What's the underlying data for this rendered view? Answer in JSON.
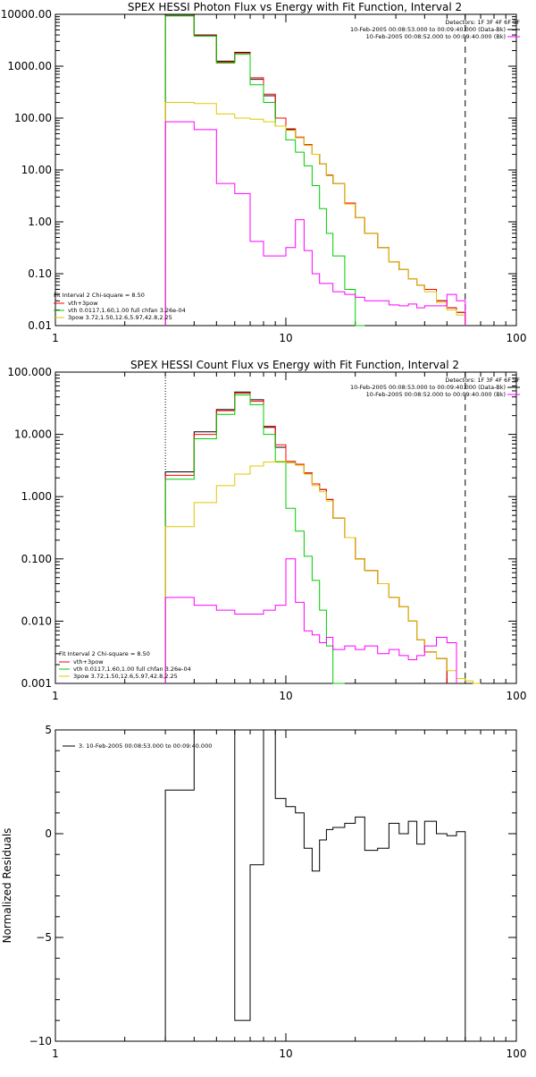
{
  "chart_data": [
    {
      "type": "line",
      "title": "SPEX HESSI Photon Flux vs Energy with Fit Function, Interval 2",
      "xscale": "log",
      "yscale": "log",
      "xlim": [
        1,
        100
      ],
      "ylim": [
        0.01,
        10000
      ],
      "x_ticks": [
        "1",
        "10",
        "100"
      ],
      "y_ticks": [
        {
          "v": 0.01,
          "label": "0.01"
        },
        {
          "v": 0.1,
          "label": "0.10"
        },
        {
          "v": 1,
          "label": "1.00"
        },
        {
          "v": 10,
          "label": "10.00"
        },
        {
          "v": 100,
          "label": "100.00"
        },
        {
          "v": 1000,
          "label": "1000.00"
        },
        {
          "v": 10000,
          "label": "10000.00"
        }
      ],
      "vlines": [
        {
          "x": 3,
          "style": "dotted"
        },
        {
          "x": 60,
          "style": "dashed"
        }
      ],
      "legend_top": {
        "header": "Detectors: 1F 3F 4F 6F 9F",
        "items": [
          {
            "label": "10-Feb-2005 00:08:53.000 to 00:09:40.000 (Data-Bk)",
            "color": "#000000"
          },
          {
            "label": "10-Feb-2005 00:08:52.000 to 00:09:40.000 (Bk)",
            "color": "#ff00ff"
          }
        ]
      },
      "legend_bottom": {
        "header": "Fit Interval 2   Chi-square = 8.50",
        "items": [
          {
            "label": "vth+3pow",
            "color": "#ff0000"
          },
          {
            "label": "vth 0.0117,1.60,1.00  full chfan 3.26e-04",
            "color": "#00cc00"
          },
          {
            "label": "3pow 3.72,1.50,12.6,5.97,42.8,2.25",
            "color": "#e0c800"
          }
        ]
      },
      "bin_edges": [
        3,
        4,
        5,
        6,
        7,
        8,
        9,
        10,
        11,
        12,
        13,
        14,
        15,
        16,
        18,
        20,
        22,
        25,
        28,
        31,
        34,
        37,
        40,
        45,
        50,
        55,
        60
      ],
      "series": [
        {
          "name": "Data-Bk",
          "color": "#000000",
          "values": [
            9500,
            4000,
            1250,
            1850,
            560,
            270,
            100,
            60,
            42,
            30,
            20,
            13,
            7.8,
            5.5,
            2.3,
            1.2,
            0.6,
            0.32,
            0.17,
            0.12,
            0.08,
            0.06,
            0.05,
            0.03,
            0.022,
            0.018
          ]
        },
        {
          "name": "vth+3pow",
          "color": "#ff0000",
          "values": [
            9400,
            3900,
            1200,
            1800,
            600,
            290,
            100,
            62,
            43,
            31,
            20,
            13,
            8,
            5.5,
            2.3,
            1.2,
            0.6,
            0.32,
            0.17,
            0.12,
            0.08,
            0.06,
            0.05,
            0.03,
            0.022,
            0.018
          ]
        },
        {
          "name": "vth",
          "color": "#00cc00",
          "values": [
            9300,
            3800,
            1150,
            1700,
            440,
            200,
            70,
            38,
            22,
            12,
            5,
            1.8,
            0.6,
            0.22,
            0.05,
            0.009
          ]
        },
        {
          "name": "3pow",
          "color": "#e0c800",
          "values": [
            200,
            190,
            120,
            100,
            95,
            85,
            70,
            58,
            42,
            30,
            20,
            13,
            7.8,
            5.5,
            2.2,
            1.2,
            0.6,
            0.32,
            0.17,
            0.12,
            0.08,
            0.06,
            0.045,
            0.028,
            0.02,
            0.016
          ]
        },
        {
          "name": "Bk",
          "color": "#ff00ff",
          "values": [
            85,
            60,
            5.5,
            3.5,
            0.42,
            0.22,
            0.22,
            0.32,
            1.1,
            0.28,
            0.1,
            0.065,
            0.065,
            0.045,
            0.04,
            0.035,
            0.03,
            0.03,
            0.025,
            0.024,
            0.026,
            0.022,
            0.024,
            0.024,
            0.04,
            0.03
          ]
        }
      ]
    },
    {
      "type": "line",
      "title": "SPEX HESSI Count Flux vs Energy with Fit Function, Interval 2",
      "xscale": "log",
      "yscale": "log",
      "xlim": [
        1,
        100
      ],
      "ylim": [
        0.001,
        100
      ],
      "x_ticks": [
        "1",
        "10",
        "100"
      ],
      "y_ticks": [
        {
          "v": 0.001,
          "label": "0.001"
        },
        {
          "v": 0.01,
          "label": "0.010"
        },
        {
          "v": 0.1,
          "label": "0.100"
        },
        {
          "v": 1,
          "label": "1.000"
        },
        {
          "v": 10,
          "label": "10.000"
        },
        {
          "v": 100,
          "label": "100.000"
        }
      ],
      "vlines": [
        {
          "x": 3,
          "style": "dotted"
        },
        {
          "x": 60,
          "style": "dashed"
        }
      ],
      "legend_top": {
        "header": "Detectors: 1F 3F 4F 6F 9F",
        "items": [
          {
            "label": "10-Feb-2005 00:08:53.000 to 00:09:40.000 (Data-Bk)",
            "color": "#000000"
          },
          {
            "label": "10-Feb-2005 00:08:52.000 to 00:09:40.000 (Bk)",
            "color": "#ff00ff"
          }
        ]
      },
      "legend_bottom": {
        "header": "Fit Interval 2   Chi-square = 8.50",
        "items": [
          {
            "label": "vth+3pow",
            "color": "#ff0000"
          },
          {
            "label": "vth 0.0117,1.60,1.00  full chfan 3.26e-04",
            "color": "#00cc00"
          },
          {
            "label": "3pow 3.72,1.50,12.6,5.97,42.8,2.25",
            "color": "#e0c800"
          }
        ]
      },
      "bin_edges": [
        3,
        4,
        5,
        6,
        7,
        8,
        9,
        10,
        11,
        12,
        13,
        14,
        15,
        16,
        18,
        20,
        22,
        25,
        28,
        31,
        34,
        37,
        40,
        45,
        50,
        55,
        60,
        65,
        70
      ],
      "series": [
        {
          "name": "Data-Bk",
          "color": "#000000",
          "values": [
            2.5,
            11,
            25,
            48,
            36,
            13,
            6.2,
            3.5,
            3.3,
            2.4,
            1.6,
            1.3,
            0.9,
            0.45,
            0.22,
            0.1,
            0.065,
            0.04,
            0.024,
            0.017,
            0.01,
            0.005,
            0.0032,
            0.0025
          ]
        },
        {
          "name": "vth+3pow",
          "color": "#ff0000",
          "values": [
            2.2,
            10,
            24,
            46,
            34,
            13.5,
            6.8,
            3.7,
            3.3,
            2.4,
            1.6,
            1.3,
            0.9,
            0.45,
            0.22,
            0.1,
            0.065,
            0.04,
            0.024,
            0.017,
            0.01,
            0.005,
            0.0032,
            0.0025
          ]
        },
        {
          "name": "vth",
          "color": "#00cc00",
          "values": [
            1.9,
            8.5,
            21,
            43,
            30,
            10,
            3.6,
            0.65,
            0.28,
            0.11,
            0.045,
            0.015,
            0.004,
            0.0008
          ]
        },
        {
          "name": "3pow",
          "color": "#e0c800",
          "values": [
            0.33,
            0.8,
            1.5,
            2.3,
            3.1,
            3.6,
            3.7,
            3.5,
            3.2,
            2.3,
            1.5,
            1.2,
            0.85,
            0.45,
            0.22,
            0.1,
            0.065,
            0.04,
            0.024,
            0.017,
            0.01,
            0.005,
            0.0032,
            0.0025,
            0.0016,
            0.0012,
            0.0011,
            0.0008
          ]
        },
        {
          "name": "Bk",
          "color": "#ff00ff",
          "values": [
            0.024,
            0.018,
            0.015,
            0.013,
            0.013,
            0.015,
            0.018,
            0.1,
            0.02,
            0.007,
            0.006,
            0.0045,
            0.0055,
            0.0035,
            0.004,
            0.0035,
            0.004,
            0.003,
            0.0035,
            0.0028,
            0.0024,
            0.0028,
            0.004,
            0.0055,
            0.0045
          ]
        }
      ]
    },
    {
      "type": "line",
      "title": "",
      "ylabel": "Normalized Residuals",
      "xscale": "log",
      "yscale": "linear",
      "xlim": [
        1,
        100
      ],
      "ylim": [
        -10,
        5
      ],
      "x_ticks": [
        "1",
        "10",
        "100"
      ],
      "y_ticks": [
        {
          "v": -10,
          "label": "−10"
        },
        {
          "v": -5,
          "label": "−5"
        },
        {
          "v": 0,
          "label": "0"
        },
        {
          "v": 5,
          "label": "5"
        }
      ],
      "legend": {
        "label": "3. 10-Feb-2005 00:08:53.000 to 00:09:40.000",
        "color": "#000000"
      },
      "bin_edges": [
        3,
        4,
        5,
        6,
        7,
        8,
        9,
        10,
        11,
        12,
        13,
        14,
        15,
        16,
        18,
        20,
        22,
        25,
        28,
        31,
        34,
        37,
        40,
        45,
        50,
        55,
        60
      ],
      "series": [
        {
          "name": "",
          "color": "#000000",
          "values": [
            2.1,
            5.0,
            5.5,
            -9.0,
            -1.5,
            5.5,
            1.7,
            1.3,
            1.0,
            -0.7,
            -1.8,
            -0.3,
            0.2,
            0.3,
            0.5,
            0.8,
            -0.8,
            -0.7,
            0.5,
            0.0,
            0.6,
            -0.5,
            0.6,
            0.0,
            -0.1,
            0.1
          ]
        }
      ]
    }
  ]
}
